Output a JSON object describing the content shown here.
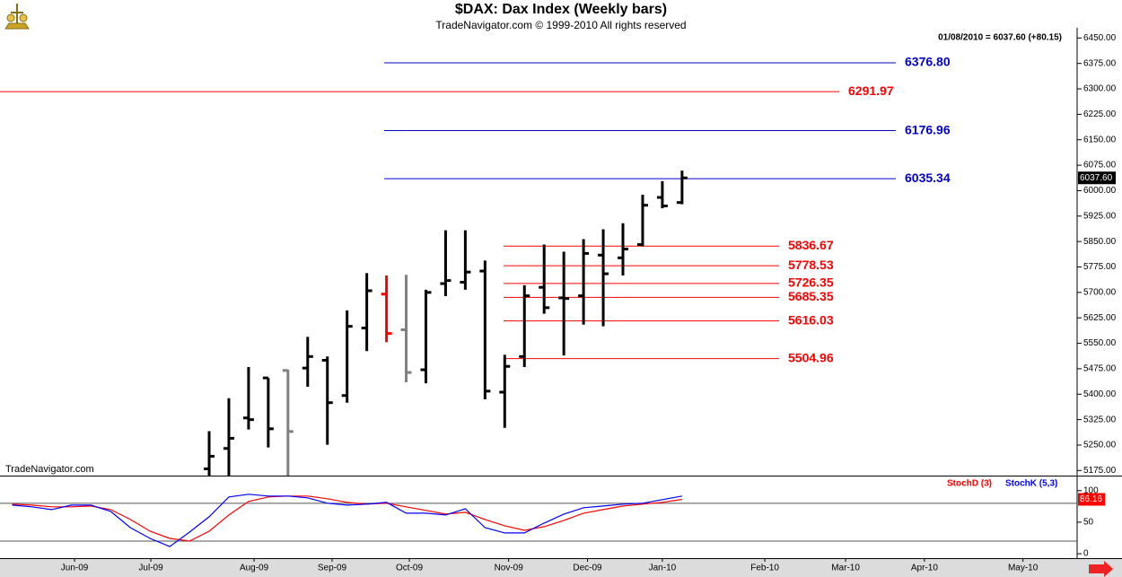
{
  "chart_data": {
    "type": "ohlc",
    "title": "$DAX:  Dax Index  (Weekly bars)",
    "subtitle": "TradeNavigator.com © 1999-2010 All rights reserved",
    "watermark": "TradeNavigator.com",
    "status": "01/08/2010 = 6037.60 (+80.15)",
    "last_price_label": "6037.60",
    "categories": [
      null,
      null,
      null,
      null,
      null,
      null,
      null,
      null,
      null,
      null,
      null,
      null,
      null,
      null,
      null,
      null,
      null,
      null,
      null,
      null,
      null,
      null,
      null,
      null,
      null,
      null,
      null,
      null,
      null,
      null,
      null,
      null,
      null,
      null,
      null
    ],
    "xlim": [
      -0.615,
      54.05
    ],
    "xticks": [
      {
        "value": 3.17,
        "label": "Jun-09"
      },
      {
        "value": 7.04,
        "label": "Jul-09"
      },
      {
        "value": 12.28,
        "label": "Aug-09"
      },
      {
        "value": 16.24,
        "label": "Sep-09"
      },
      {
        "value": 20.16,
        "label": "Oct-09"
      },
      {
        "value": 25.2,
        "label": "Nov-09"
      },
      {
        "value": 29.2,
        "label": "Dec-09"
      },
      {
        "value": 33.0,
        "label": "Jan-10"
      },
      {
        "value": 38.2,
        "label": "Feb-10"
      },
      {
        "value": 42.3,
        "label": "Mar-10"
      },
      {
        "value": 46.3,
        "label": "Apr-10"
      },
      {
        "value": 51.3,
        "label": "May-10"
      }
    ],
    "ylim": [
      5160,
      6480
    ],
    "yticks": [
      {
        "value": 5175,
        "label": "5175.00"
      },
      {
        "value": 5250,
        "label": "5250.00"
      },
      {
        "value": 5325,
        "label": "5325.00"
      },
      {
        "value": 5400,
        "label": "5400.00"
      },
      {
        "value": 5475,
        "label": "5475.00"
      },
      {
        "value": 5550,
        "label": "5550.00"
      },
      {
        "value": 5625,
        "label": "5625.00"
      },
      {
        "value": 5700,
        "label": "5700.00"
      },
      {
        "value": 5775,
        "label": "5775.00"
      },
      {
        "value": 5850,
        "label": "5850.00"
      },
      {
        "value": 5925,
        "label": "5925.00"
      },
      {
        "value": 6000,
        "label": "6000.00"
      },
      {
        "value": 6075,
        "label": "6075.00"
      },
      {
        "value": 6150,
        "label": "6150.00"
      },
      {
        "value": 6225,
        "label": "6225.00"
      },
      {
        "value": 6300,
        "label": "6300.00"
      },
      {
        "value": 6375,
        "label": "6375.00"
      },
      {
        "value": 6450,
        "label": "6450.00"
      }
    ],
    "open": [
      null,
      null,
      null,
      null,
      null,
      null,
      null,
      null,
      null,
      null,
      5180,
      5240,
      5330,
      5448,
      5470,
      5477,
      5500,
      5396,
      5595,
      5695,
      5590,
      5472,
      5726,
      5730,
      5763,
      5406,
      5511,
      5715,
      5684,
      5690,
      5810,
      5802,
      5841,
      5980,
      5965
    ],
    "high": [
      null,
      null,
      null,
      null,
      null,
      null,
      null,
      null,
      null,
      null,
      5291,
      5388,
      5480,
      5448,
      5472,
      5569,
      5511,
      5647,
      5757,
      5750,
      5752,
      5708,
      5883,
      5883,
      5794,
      5516,
      5721,
      5841,
      5820,
      5857,
      5886,
      5904,
      5988,
      6028,
      6059
    ],
    "low": [
      null,
      null,
      null,
      null,
      null,
      null,
      null,
      null,
      null,
      null,
      5100,
      5140,
      5296,
      5243,
      5150,
      5422,
      5251,
      5375,
      5527,
      5553,
      5435,
      5432,
      5689,
      5708,
      5385,
      5301,
      5480,
      5637,
      5514,
      5605,
      5600,
      5750,
      5836,
      5948,
      5960
    ],
    "close": [
      null,
      null,
      null,
      null,
      null,
      null,
      null,
      null,
      null,
      null,
      5217,
      5270,
      5325,
      5298,
      5290,
      5511,
      5375,
      5600,
      5705,
      5579,
      5464,
      5700,
      5735,
      5760,
      5409,
      5482,
      5690,
      5655,
      5682,
      5815,
      5755,
      5828,
      5957,
      5955,
      6037.6
    ],
    "bar_colors": [
      null,
      null,
      null,
      null,
      null,
      null,
      null,
      null,
      null,
      null,
      "#000000",
      "#000000",
      "#000000",
      "#000000",
      "#808080",
      "#000000",
      "#000000",
      "#000000",
      "#000000",
      "#ff0000",
      "#808080",
      "#000000",
      "#000000",
      "#000000",
      "#000000",
      "#000000",
      "#000000",
      "#000000",
      "#000000",
      "#000000",
      "#000000",
      "#000000",
      "#000000",
      "#000000",
      "#000000"
    ],
    "levels": [
      {
        "value": 6376.8,
        "label": "6376.80",
        "color": "#0000cc"
      },
      {
        "value": 6291.97,
        "color": "#ff0000"
      },
      {
        "value": 6176.96,
        "color": "#0000cc"
      },
      {
        "value": 6035.34,
        "color": "#0000cc"
      },
      {
        "value": 5836.67,
        "color": "#ff0000"
      },
      {
        "value": 5778.53,
        "color": "#ff0000"
      },
      {
        "value": 5726.35,
        "color": "#ff0000"
      },
      {
        "value": 5685.35,
        "color": "#ff0000"
      },
      {
        "value": 5616.03,
        "color": "#ff0000"
      },
      {
        "value": 5504.96,
        "color": "#ff0000"
      }
    ],
    "stoch": {
      "ylim": [
        -7,
        121
      ],
      "yticks": [
        0,
        50,
        100
      ],
      "bands": [
        20,
        80
      ],
      "series": [
        {
          "name": "StochD (3)",
          "color": "#ff0000",
          "values": [
            78.6,
            77.1,
            74.3,
            74.3,
            75.7,
            70,
            54.3,
            35.7,
            24.3,
            20,
            35.7,
            61.4,
            82.9,
            90,
            91.4,
            91.4,
            87.1,
            81.4,
            78.6,
            80,
            74.3,
            68.6,
            62.9,
            65.7,
            54.3,
            44.3,
            37.1,
            42.9,
            52.9,
            64.3,
            70,
            75.7,
            78.6,
            81.4,
            86.16
          ]
        },
        {
          "name": "StochK (5,3)",
          "color": "#0000ff",
          "values": [
            77.1,
            74.3,
            70,
            77.1,
            77.1,
            67.1,
            41.4,
            24.3,
            11.4,
            34.3,
            58.6,
            90,
            94.3,
            91.4,
            91.4,
            88.6,
            80,
            77.1,
            78.6,
            81.4,
            64.3,
            64.3,
            61.4,
            71.4,
            41.4,
            32.9,
            32.9,
            48.6,
            62.9,
            72.9,
            75.7,
            78.6,
            80,
            85.7,
            91.4
          ]
        }
      ]
    }
  }
}
